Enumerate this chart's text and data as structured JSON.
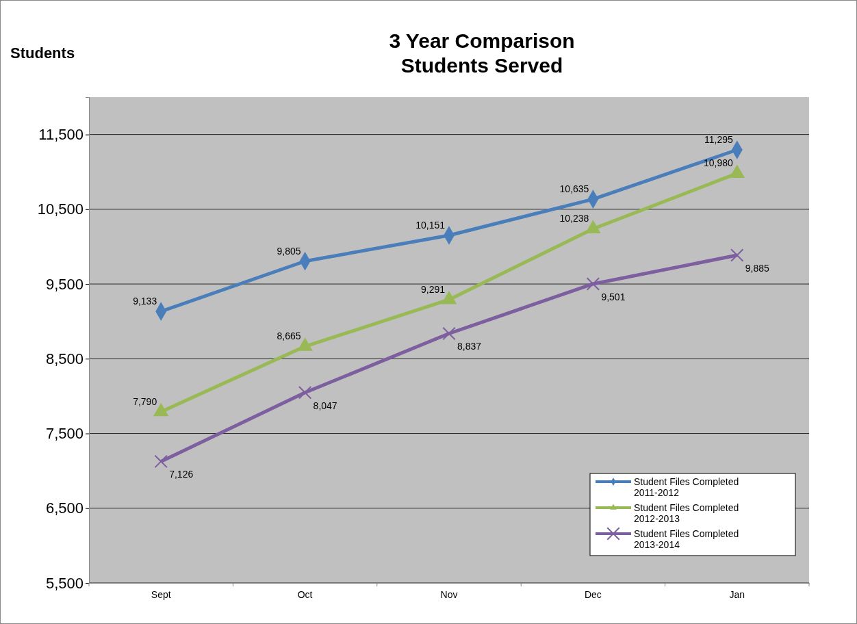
{
  "chart_data": {
    "type": "line",
    "title": "3 Year Comparison\nStudents Served",
    "ylabel": "Students",
    "categories": [
      "Sept",
      "Oct",
      "Nov",
      "Dec",
      "Jan"
    ],
    "series": [
      {
        "name": "Student Files Completed 2011-2012",
        "color": "#4a7ebb",
        "marker": "diamond",
        "values": [
          9133,
          9805,
          10151,
          10635,
          11295
        ],
        "value_labels": [
          "9,133",
          "9,805",
          "10,151",
          "10,635",
          "11,295"
        ]
      },
      {
        "name": "Student Files Completed 2012-2013",
        "color": "#98b954",
        "marker": "triangle",
        "values": [
          7790,
          8665,
          9291,
          10238,
          10980
        ],
        "value_labels": [
          "7,790",
          "8,665",
          "9,291",
          "10,238",
          "10,980"
        ]
      },
      {
        "name": "Student Files Completed 2013-2014",
        "color": "#7d5fa0",
        "marker": "cross",
        "values": [
          7126,
          8047,
          8837,
          9501,
          9885
        ],
        "value_labels": [
          "7,126",
          "8,047",
          "8,837",
          "9,501",
          "9,885"
        ]
      }
    ],
    "ylim": [
      5500,
      12000
    ],
    "yticks": [
      {
        "value": 5500,
        "label": "5,500"
      },
      {
        "value": 6500,
        "label": "6,500"
      },
      {
        "value": 7500,
        "label": "7,500"
      },
      {
        "value": 8500,
        "label": "8,500"
      },
      {
        "value": 9500,
        "label": "9,500"
      },
      {
        "value": 10500,
        "label": "10,500"
      },
      {
        "value": 11500,
        "label": "11,500"
      }
    ],
    "grid": "y",
    "legend": "bottom right"
  }
}
